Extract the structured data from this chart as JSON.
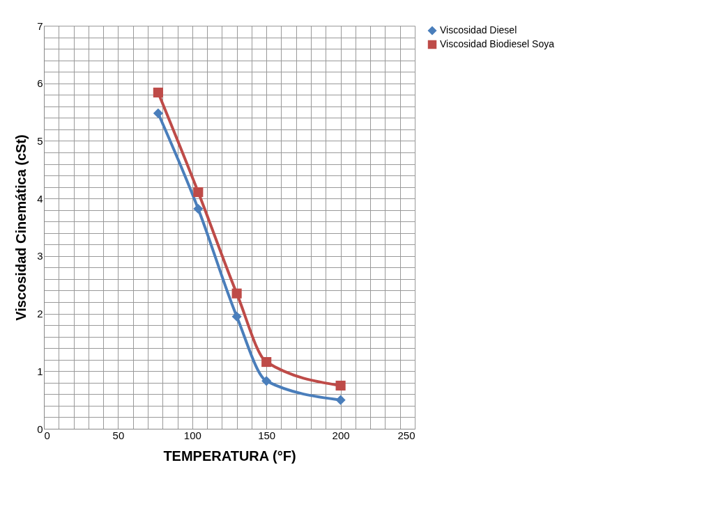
{
  "chart_data": {
    "type": "line",
    "xlabel": "TEMPERATURA  (°F)",
    "ylabel": "Viscosidad  Cinemática (cSt)",
    "xlim": [
      0,
      250
    ],
    "ylim": [
      0,
      7
    ],
    "xticks": [
      0,
      {
        "value": 10,
        "label": null
      },
      {
        "value": 20,
        "label": null
      },
      {
        "value": 30,
        "label": null
      },
      {
        "value": 40,
        "label": null
      },
      50,
      {
        "value": 60,
        "label": null
      },
      {
        "value": 70,
        "label": null
      },
      {
        "value": 80,
        "label": null
      },
      {
        "value": 90,
        "label": null
      },
      100,
      {
        "value": 110,
        "label": null
      },
      {
        "value": 120,
        "label": null
      },
      {
        "value": 130,
        "label": null
      },
      {
        "value": 140,
        "label": null
      },
      150,
      {
        "value": 160,
        "label": null
      },
      {
        "value": 170,
        "label": null
      },
      {
        "value": 180,
        "label": null
      },
      {
        "value": 190,
        "label": null
      },
      200,
      {
        "value": 210,
        "label": null
      },
      {
        "value": 220,
        "label": null
      },
      {
        "value": 230,
        "label": null
      },
      {
        "value": 240,
        "label": null
      },
      250
    ],
    "yticks": [
      0,
      {
        "value": 0.2,
        "label": null
      },
      {
        "value": 0.4,
        "label": null
      },
      {
        "value": 0.6,
        "label": null
      },
      {
        "value": 0.8,
        "label": null
      },
      1,
      {
        "value": 1.2,
        "label": null
      },
      {
        "value": 1.4,
        "label": null
      },
      {
        "value": 1.6,
        "label": null
      },
      {
        "value": 1.8,
        "label": null
      },
      2,
      {
        "value": 2.2,
        "label": null
      },
      {
        "value": 2.4,
        "label": null
      },
      {
        "value": 2.6,
        "label": null
      },
      {
        "value": 2.8,
        "label": null
      },
      3,
      {
        "value": 3.2,
        "label": null
      },
      {
        "value": 3.4,
        "label": null
      },
      {
        "value": 3.6,
        "label": null
      },
      {
        "value": 3.8,
        "label": null
      },
      4,
      {
        "value": 4.2,
        "label": null
      },
      {
        "value": 4.4,
        "label": null
      },
      {
        "value": 4.6,
        "label": null
      },
      {
        "value": 4.8,
        "label": null
      },
      5,
      {
        "value": 5.2,
        "label": null
      },
      {
        "value": 5.4,
        "label": null
      },
      {
        "value": 5.6,
        "label": null
      },
      {
        "value": 5.8,
        "label": null
      },
      6,
      {
        "value": 6.2,
        "label": null
      },
      {
        "value": 6.4,
        "label": null
      },
      {
        "value": 6.6,
        "label": null
      },
      {
        "value": 6.8,
        "label": null
      },
      7
    ],
    "x": [
      77,
      104,
      130,
      150,
      200
    ],
    "series": [
      {
        "name": "Viscosidad Diesel",
        "color": "#4a7ebb",
        "marker": "diamond",
        "values": [
          5.48,
          3.82,
          1.95,
          0.83,
          0.5
        ]
      },
      {
        "name": "Viscosidad Biodiesel Soya",
        "color": "#be4b48",
        "marker": "square",
        "values": [
          5.84,
          4.11,
          2.35,
          1.16,
          0.75
        ]
      }
    ],
    "grid": true,
    "legend": "right",
    "line_style": "solid"
  }
}
